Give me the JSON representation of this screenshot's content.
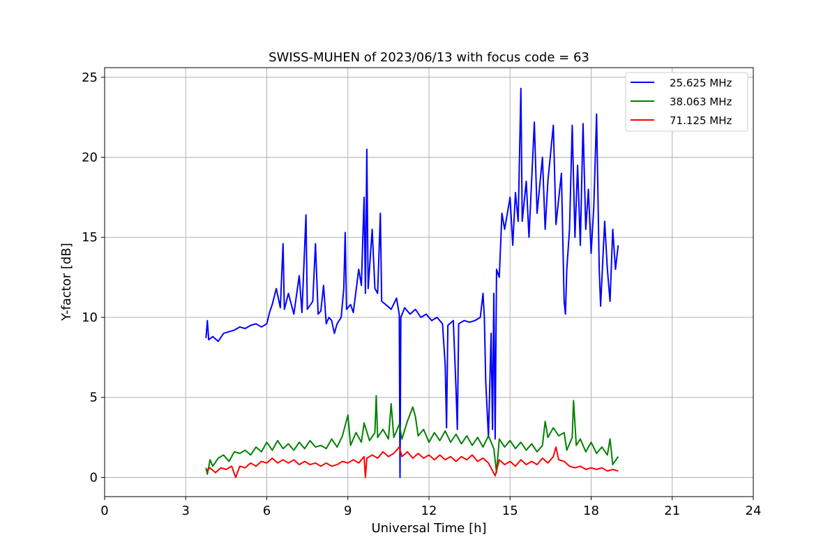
{
  "chart_data": {
    "type": "line",
    "title": "SWISS-MUHEN of 2023/06/13 with focus code = 63",
    "xlabel": "Universal Time [h]",
    "ylabel": "Y-factor [dB]",
    "xlim": [
      0,
      24
    ],
    "ylim": [
      -1.2,
      25.6
    ],
    "xticks": [
      0,
      3,
      6,
      9,
      12,
      15,
      18,
      21,
      24
    ],
    "yticks": [
      0,
      5,
      10,
      15,
      20,
      25
    ],
    "grid": true,
    "legend_position": "upper-right",
    "series": [
      {
        "name": "25.625 MHz",
        "color": "#0000ff",
        "points": [
          [
            3.75,
            8.7
          ],
          [
            3.8,
            9.8
          ],
          [
            3.85,
            8.6
          ],
          [
            4.0,
            8.8
          ],
          [
            4.2,
            8.5
          ],
          [
            4.4,
            9.0
          ],
          [
            4.6,
            9.1
          ],
          [
            4.8,
            9.2
          ],
          [
            5.0,
            9.4
          ],
          [
            5.2,
            9.3
          ],
          [
            5.4,
            9.5
          ],
          [
            5.6,
            9.6
          ],
          [
            5.8,
            9.4
          ],
          [
            6.0,
            9.6
          ],
          [
            6.1,
            10.3
          ],
          [
            6.2,
            10.8
          ],
          [
            6.35,
            11.8
          ],
          [
            6.5,
            10.6
          ],
          [
            6.6,
            14.6
          ],
          [
            6.65,
            10.5
          ],
          [
            6.8,
            11.5
          ],
          [
            7.0,
            10.2
          ],
          [
            7.2,
            12.6
          ],
          [
            7.3,
            10.3
          ],
          [
            7.45,
            16.4
          ],
          [
            7.5,
            10.5
          ],
          [
            7.7,
            11.0
          ],
          [
            7.8,
            14.6
          ],
          [
            7.9,
            10.2
          ],
          [
            8.0,
            10.4
          ],
          [
            8.1,
            12.0
          ],
          [
            8.2,
            9.6
          ],
          [
            8.3,
            10.0
          ],
          [
            8.4,
            9.8
          ],
          [
            8.5,
            9.0
          ],
          [
            8.6,
            9.6
          ],
          [
            8.75,
            10.0
          ],
          [
            8.85,
            11.8
          ],
          [
            8.9,
            15.3
          ],
          [
            8.95,
            10.5
          ],
          [
            9.1,
            10.8
          ],
          [
            9.2,
            10.3
          ],
          [
            9.4,
            13.0
          ],
          [
            9.5,
            12.0
          ],
          [
            9.6,
            17.5
          ],
          [
            9.65,
            11.5
          ],
          [
            9.7,
            20.5
          ],
          [
            9.75,
            11.8
          ],
          [
            9.9,
            15.5
          ],
          [
            10.0,
            11.8
          ],
          [
            10.1,
            11.5
          ],
          [
            10.2,
            16.5
          ],
          [
            10.25,
            11.0
          ],
          [
            10.4,
            10.8
          ],
          [
            10.6,
            10.5
          ],
          [
            10.8,
            11.2
          ],
          [
            10.9,
            10.2
          ],
          [
            10.93,
            0.0
          ],
          [
            10.96,
            10.0
          ],
          [
            11.1,
            10.6
          ],
          [
            11.3,
            10.2
          ],
          [
            11.5,
            10.5
          ],
          [
            11.7,
            10.0
          ],
          [
            11.9,
            10.2
          ],
          [
            12.1,
            9.8
          ],
          [
            12.3,
            10.0
          ],
          [
            12.5,
            9.6
          ],
          [
            12.6,
            7.0
          ],
          [
            12.65,
            3.1
          ],
          [
            12.7,
            9.5
          ],
          [
            12.9,
            9.8
          ],
          [
            13.0,
            5.5
          ],
          [
            13.05,
            3.0
          ],
          [
            13.1,
            9.6
          ],
          [
            13.3,
            9.8
          ],
          [
            13.5,
            9.7
          ],
          [
            13.7,
            9.8
          ],
          [
            13.9,
            10.0
          ],
          [
            14.0,
            11.5
          ],
          [
            14.05,
            10.0
          ],
          [
            14.1,
            6.0
          ],
          [
            14.2,
            2.5
          ],
          [
            14.3,
            9.0
          ],
          [
            14.35,
            3.0
          ],
          [
            14.4,
            11.5
          ],
          [
            14.45,
            2.4
          ],
          [
            14.5,
            13.0
          ],
          [
            14.6,
            12.5
          ],
          [
            14.7,
            16.5
          ],
          [
            14.8,
            15.5
          ],
          [
            15.0,
            17.5
          ],
          [
            15.1,
            14.5
          ],
          [
            15.2,
            17.8
          ],
          [
            15.3,
            16.0
          ],
          [
            15.4,
            24.3
          ],
          [
            15.45,
            16.0
          ],
          [
            15.6,
            18.5
          ],
          [
            15.7,
            15.0
          ],
          [
            15.9,
            22.2
          ],
          [
            16.0,
            16.5
          ],
          [
            16.2,
            20.0
          ],
          [
            16.3,
            15.5
          ],
          [
            16.4,
            18.5
          ],
          [
            16.6,
            22.0
          ],
          [
            16.7,
            15.8
          ],
          [
            16.9,
            19.0
          ],
          [
            17.0,
            11.0
          ],
          [
            17.05,
            10.2
          ],
          [
            17.1,
            13.0
          ],
          [
            17.2,
            15.5
          ],
          [
            17.3,
            22.0
          ],
          [
            17.4,
            15.0
          ],
          [
            17.5,
            19.5
          ],
          [
            17.6,
            14.5
          ],
          [
            17.7,
            22.1
          ],
          [
            17.8,
            15.5
          ],
          [
            17.9,
            18.0
          ],
          [
            18.0,
            14.0
          ],
          [
            18.1,
            17.0
          ],
          [
            18.2,
            22.7
          ],
          [
            18.3,
            13.0
          ],
          [
            18.35,
            10.7
          ],
          [
            18.5,
            16.0
          ],
          [
            18.6,
            13.0
          ],
          [
            18.7,
            11.0
          ],
          [
            18.8,
            15.5
          ],
          [
            18.9,
            13.0
          ],
          [
            19.0,
            14.5
          ]
        ]
      },
      {
        "name": "38.063 MHz",
        "color": "#008000",
        "points": [
          [
            3.75,
            0.6
          ],
          [
            3.8,
            0.2
          ],
          [
            3.9,
            1.1
          ],
          [
            4.0,
            0.7
          ],
          [
            4.2,
            1.2
          ],
          [
            4.4,
            1.4
          ],
          [
            4.6,
            1.0
          ],
          [
            4.8,
            1.6
          ],
          [
            5.0,
            1.5
          ],
          [
            5.2,
            1.7
          ],
          [
            5.4,
            1.4
          ],
          [
            5.6,
            1.9
          ],
          [
            5.8,
            1.6
          ],
          [
            6.0,
            2.2
          ],
          [
            6.2,
            1.7
          ],
          [
            6.4,
            2.3
          ],
          [
            6.6,
            1.8
          ],
          [
            6.8,
            2.1
          ],
          [
            7.0,
            1.7
          ],
          [
            7.2,
            2.2
          ],
          [
            7.4,
            1.8
          ],
          [
            7.6,
            2.3
          ],
          [
            7.8,
            1.9
          ],
          [
            8.0,
            2.0
          ],
          [
            8.2,
            1.8
          ],
          [
            8.4,
            2.4
          ],
          [
            8.6,
            1.9
          ],
          [
            8.8,
            2.6
          ],
          [
            9.0,
            3.9
          ],
          [
            9.1,
            2.0
          ],
          [
            9.3,
            2.8
          ],
          [
            9.5,
            2.2
          ],
          [
            9.6,
            3.4
          ],
          [
            9.8,
            2.3
          ],
          [
            10.0,
            2.8
          ],
          [
            10.05,
            5.1
          ],
          [
            10.1,
            2.5
          ],
          [
            10.3,
            3.0
          ],
          [
            10.5,
            2.4
          ],
          [
            10.6,
            4.6
          ],
          [
            10.7,
            2.5
          ],
          [
            10.9,
            3.3
          ],
          [
            11.0,
            2.4
          ],
          [
            11.2,
            3.5
          ],
          [
            11.4,
            4.4
          ],
          [
            11.5,
            3.8
          ],
          [
            11.6,
            2.6
          ],
          [
            11.8,
            3.0
          ],
          [
            12.0,
            2.2
          ],
          [
            12.2,
            2.8
          ],
          [
            12.4,
            2.3
          ],
          [
            12.6,
            2.9
          ],
          [
            12.8,
            2.2
          ],
          [
            13.0,
            2.7
          ],
          [
            13.2,
            2.1
          ],
          [
            13.4,
            2.6
          ],
          [
            13.6,
            2.0
          ],
          [
            13.8,
            2.5
          ],
          [
            14.0,
            1.9
          ],
          [
            14.2,
            2.6
          ],
          [
            14.4,
            1.8
          ],
          [
            14.5,
            0.3
          ],
          [
            14.6,
            2.4
          ],
          [
            14.8,
            1.9
          ],
          [
            15.0,
            2.3
          ],
          [
            15.2,
            1.8
          ],
          [
            15.4,
            2.2
          ],
          [
            15.6,
            1.7
          ],
          [
            15.8,
            2.1
          ],
          [
            16.0,
            1.6
          ],
          [
            16.2,
            2.0
          ],
          [
            16.3,
            3.5
          ],
          [
            16.4,
            2.5
          ],
          [
            16.6,
            3.1
          ],
          [
            16.8,
            2.6
          ],
          [
            17.0,
            2.8
          ],
          [
            17.1,
            1.7
          ],
          [
            17.3,
            2.5
          ],
          [
            17.35,
            4.8
          ],
          [
            17.45,
            2.0
          ],
          [
            17.6,
            2.4
          ],
          [
            17.8,
            1.6
          ],
          [
            18.0,
            2.2
          ],
          [
            18.2,
            1.5
          ],
          [
            18.4,
            1.9
          ],
          [
            18.6,
            1.4
          ],
          [
            18.7,
            2.4
          ],
          [
            18.8,
            0.8
          ],
          [
            19.0,
            1.3
          ]
        ]
      },
      {
        "name": "71.125 MHz",
        "color": "#ff0000",
        "points": [
          [
            3.75,
            0.4
          ],
          [
            3.9,
            0.6
          ],
          [
            4.1,
            0.3
          ],
          [
            4.3,
            0.6
          ],
          [
            4.5,
            0.5
          ],
          [
            4.7,
            0.7
          ],
          [
            4.85,
            0.0
          ],
          [
            5.0,
            0.7
          ],
          [
            5.2,
            0.6
          ],
          [
            5.4,
            0.9
          ],
          [
            5.6,
            0.7
          ],
          [
            5.8,
            1.0
          ],
          [
            6.0,
            0.9
          ],
          [
            6.2,
            1.2
          ],
          [
            6.4,
            0.9
          ],
          [
            6.6,
            1.1
          ],
          [
            6.8,
            0.9
          ],
          [
            7.0,
            1.1
          ],
          [
            7.2,
            0.8
          ],
          [
            7.4,
            1.0
          ],
          [
            7.6,
            0.8
          ],
          [
            7.8,
            0.9
          ],
          [
            8.0,
            0.7
          ],
          [
            8.2,
            0.9
          ],
          [
            8.4,
            0.7
          ],
          [
            8.6,
            0.8
          ],
          [
            8.8,
            1.0
          ],
          [
            9.0,
            0.9
          ],
          [
            9.2,
            1.1
          ],
          [
            9.4,
            0.9
          ],
          [
            9.6,
            1.3
          ],
          [
            9.65,
            0.0
          ],
          [
            9.7,
            1.2
          ],
          [
            9.9,
            1.4
          ],
          [
            10.1,
            1.2
          ],
          [
            10.3,
            1.6
          ],
          [
            10.5,
            1.3
          ],
          [
            10.7,
            1.5
          ],
          [
            10.9,
            1.9
          ],
          [
            11.0,
            1.3
          ],
          [
            11.2,
            1.6
          ],
          [
            11.4,
            1.2
          ],
          [
            11.6,
            1.5
          ],
          [
            11.8,
            1.2
          ],
          [
            12.0,
            1.4
          ],
          [
            12.2,
            1.1
          ],
          [
            12.4,
            1.4
          ],
          [
            12.6,
            1.1
          ],
          [
            12.8,
            1.3
          ],
          [
            13.0,
            1.0
          ],
          [
            13.2,
            1.3
          ],
          [
            13.4,
            1.1
          ],
          [
            13.6,
            1.4
          ],
          [
            13.8,
            1.0
          ],
          [
            14.0,
            1.2
          ],
          [
            14.2,
            0.9
          ],
          [
            14.45,
            0.1
          ],
          [
            14.6,
            1.1
          ],
          [
            14.8,
            0.8
          ],
          [
            15.0,
            1.0
          ],
          [
            15.2,
            0.7
          ],
          [
            15.4,
            1.1
          ],
          [
            15.6,
            0.8
          ],
          [
            15.8,
            1.0
          ],
          [
            16.0,
            0.8
          ],
          [
            16.2,
            1.2
          ],
          [
            16.4,
            0.9
          ],
          [
            16.6,
            1.3
          ],
          [
            16.7,
            1.9
          ],
          [
            16.8,
            1.1
          ],
          [
            17.0,
            1.0
          ],
          [
            17.2,
            0.7
          ],
          [
            17.4,
            0.6
          ],
          [
            17.6,
            0.7
          ],
          [
            17.8,
            0.5
          ],
          [
            18.0,
            0.6
          ],
          [
            18.2,
            0.5
          ],
          [
            18.4,
            0.6
          ],
          [
            18.6,
            0.4
          ],
          [
            18.8,
            0.5
          ],
          [
            19.0,
            0.4
          ]
        ]
      }
    ]
  }
}
